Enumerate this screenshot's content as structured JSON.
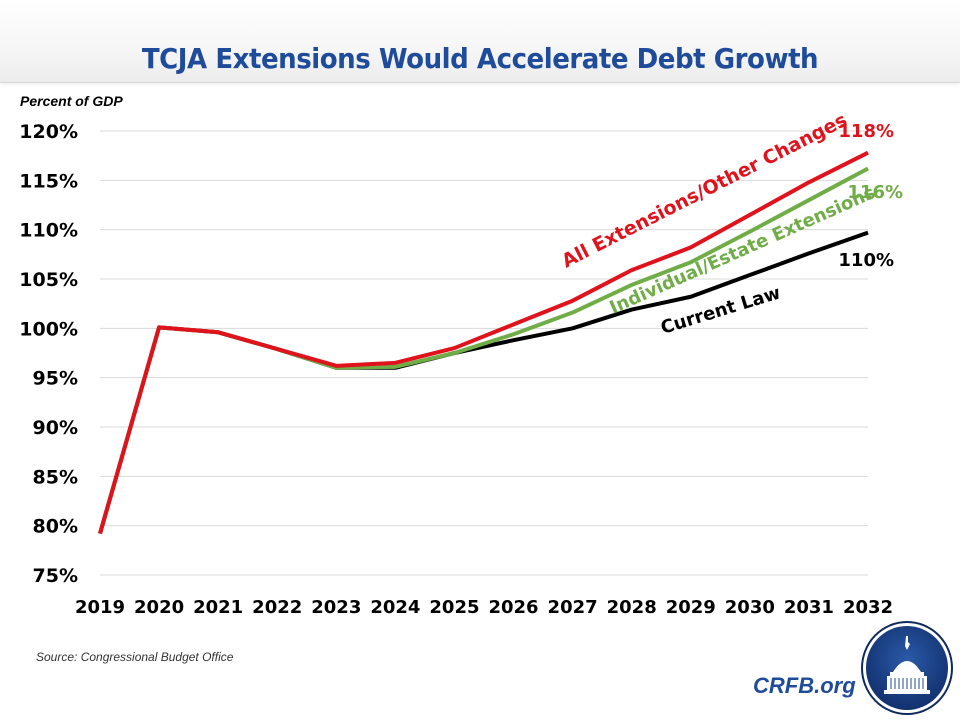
{
  "header": {
    "title": "TCJA Extensions Would Accelerate Debt Growth"
  },
  "footer": {
    "source": "Source: Congressional Budget Office",
    "brand": "CRFB.org"
  },
  "colors": {
    "red": "#e0121b",
    "green": "#70ad47",
    "black": "#000000",
    "title_blue": "#1e4b9a",
    "grid": "#d9d9d9"
  },
  "chart_data": {
    "type": "line",
    "title": "TCJA Extensions Would Accelerate Debt Growth",
    "xlabel": "",
    "ylabel": "Percent of GDP",
    "ylim": [
      75,
      120
    ],
    "grid": true,
    "legend": "inline labels on lines",
    "x": [
      2019,
      2020,
      2021,
      2022,
      2023,
      2024,
      2025,
      2026,
      2027,
      2028,
      2029,
      2030,
      2031,
      2032
    ],
    "x_tick_labels": [
      "2019",
      "2020",
      "2021",
      "2022",
      "2023",
      "2024",
      "2025",
      "2026",
      "2027",
      "2028",
      "2029",
      "2030",
      "2031",
      "2032"
    ],
    "y_ticks": [
      75,
      80,
      85,
      90,
      95,
      100,
      105,
      110,
      115,
      120
    ],
    "y_tick_labels": [
      "75%",
      "80%",
      "85%",
      "90%",
      "95%",
      "100%",
      "105%",
      "110%",
      "115%",
      "120%"
    ],
    "series": [
      {
        "name": "Current Law",
        "color": "#000000",
        "values": [
          79.2,
          100.1,
          99.6,
          97.9,
          96.0,
          96.0,
          97.5,
          98.8,
          100.0,
          101.9,
          103.2,
          105.4,
          107.6,
          109.7
        ],
        "end_label": "110%"
      },
      {
        "name": "Individual/Estate Extensions",
        "color": "#70ad47",
        "values": [
          79.2,
          100.1,
          99.6,
          97.9,
          96.0,
          96.1,
          97.5,
          99.4,
          101.6,
          104.4,
          106.7,
          109.8,
          113.0,
          116.2
        ],
        "end_label": "116%"
      },
      {
        "name": "All Extensions/Other Changes",
        "color": "#e0121b",
        "values": [
          79.2,
          100.1,
          99.6,
          97.9,
          96.2,
          96.5,
          98.0,
          100.4,
          102.8,
          105.9,
          108.2,
          111.5,
          114.8,
          117.8
        ],
        "end_label": "118%"
      }
    ]
  }
}
